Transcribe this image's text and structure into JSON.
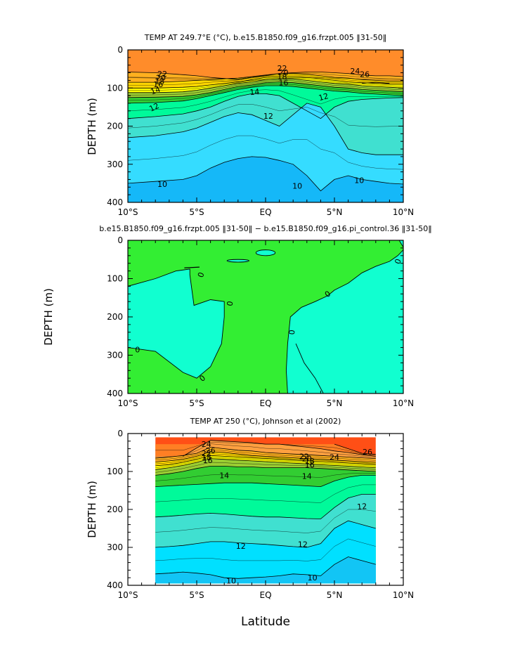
{
  "xlabel": "Latitude",
  "x_ticks": [
    "10°S",
    "5°S",
    "EQ",
    "5°N",
    "10°N"
  ],
  "y_ticks": [
    "0",
    "100",
    "200",
    "300",
    "400"
  ],
  "colors": {
    "top_panel": [
      "#0f1fe0",
      "#1f55f0",
      "#1e90ff",
      "#15b8f8",
      "#35dcff",
      "#40e0d0",
      "#00fa9a",
      "#32cd32",
      "#9acd32",
      "#ffff00",
      "#ffd700",
      "#ffb01f",
      "#ffa040",
      "#ff8c2a"
    ],
    "bottom_panel": [
      "#1f55f0",
      "#1e90ff",
      "#1aa8f8",
      "#12c5f5",
      "#00e0ff",
      "#40e0d0",
      "#00fa9a",
      "#32cd32",
      "#9acd32",
      "#ffff00",
      "#ffd700",
      "#ffb01f",
      "#ffa040",
      "#ff7f24",
      "#ff4f16"
    ],
    "diff_positive": "#33ee33",
    "diff_negative": "#11ffd0"
  },
  "chart_data": [
    {
      "type": "heatmap",
      "title": "TEMP AT 249.7°E (°C), b.e15.B1850.f09_g16.frzpt.005 ‖31-50‖",
      "ylabel": "DEPTH (m)",
      "xlim": [
        -10,
        10
      ],
      "ylim": [
        400,
        0
      ],
      "levels": [
        10,
        11,
        12,
        13,
        14,
        15,
        16,
        17,
        18,
        19,
        20,
        21,
        22,
        23,
        24,
        25,
        26
      ],
      "isotherm_depths": {
        "x": [
          -10,
          -8,
          -6,
          -5,
          -4,
          -3,
          -2,
          -1,
          0,
          1,
          2,
          3,
          4,
          5,
          6,
          7,
          8,
          9,
          10
        ],
        "26": [
          null,
          null,
          null,
          null,
          null,
          null,
          null,
          null,
          null,
          null,
          null,
          null,
          null,
          null,
          null,
          88,
          85,
          88,
          null
        ],
        "24": [
          58,
          60,
          65,
          68,
          72,
          75,
          78,
          72,
          68,
          62,
          60,
          58,
          58,
          60,
          62,
          66,
          68,
          68,
          70
        ],
        "22": [
          85,
          85,
          82,
          80,
          78,
          76,
          74,
          70,
          66,
          62,
          62,
          64,
          68,
          72,
          74,
          78,
          80,
          82,
          82
        ],
        "20": [
          100,
          100,
          98,
          96,
          92,
          88,
          84,
          78,
          72,
          70,
          70,
          72,
          76,
          80,
          84,
          86,
          88,
          90,
          90
        ],
        "18": [
          112,
          112,
          110,
          106,
          100,
          94,
          88,
          84,
          78,
          76,
          76,
          80,
          84,
          88,
          90,
          94,
          96,
          98,
          100
        ],
        "16": [
          125,
          124,
          122,
          118,
          112,
          104,
          96,
          92,
          86,
          84,
          86,
          90,
          94,
          98,
          100,
          104,
          106,
          108,
          110
        ],
        "14": [
          140,
          138,
          134,
          128,
          120,
          112,
          104,
          98,
          94,
          94,
          96,
          100,
          104,
          108,
          110,
          114,
          116,
          118,
          120
        ],
        "12": [
          180,
          175,
          168,
          160,
          150,
          135,
          122,
          115,
          115,
          120,
          140,
          160,
          180,
          150,
          135,
          130,
          128,
          126,
          125
        ],
        "11": [
          230,
          225,
          215,
          205,
          190,
          175,
          165,
          170,
          185,
          200,
          170,
          140,
          150,
          200,
          260,
          270,
          275,
          275,
          275
        ],
        "10": [
          350,
          345,
          340,
          330,
          310,
          295,
          285,
          280,
          282,
          290,
          300,
          330,
          370,
          340,
          330,
          340,
          345,
          350,
          352
        ]
      },
      "labels": [
        "22",
        "20",
        "18",
        "16",
        "14",
        "12",
        "12",
        "14",
        "16",
        "18",
        "20",
        "22",
        "24",
        "26",
        "12",
        "10",
        "10",
        "10"
      ]
    },
    {
      "type": "heatmap",
      "title": "b.e15.B1850.f09_g16.frzpt.005 ‖31-50‖ − b.e15.B1850.f09_g16.pi_control.36 ‖31-50‖",
      "ylabel": "DEPTH (m)",
      "xlim": [
        -10,
        10
      ],
      "ylim": [
        400,
        0
      ],
      "levels": [
        0
      ],
      "zero_contour": {
        "western_region": {
          "lat": [
            -10,
            -8,
            -6.5,
            -5.5,
            -5.5,
            -5.2,
            -4,
            -3,
            -3,
            -3.2,
            -4,
            -5,
            -6,
            -8,
            -10
          ],
          "depth": [
            120,
            100,
            80,
            75,
            90,
            170,
            155,
            160,
            200,
            270,
            330,
            360,
            345,
            290,
            280
          ]
        },
        "eastern_region": {
          "lat": [
            1.5,
            1.5,
            1.8,
            2.5,
            3.5,
            4.5,
            5,
            6,
            7,
            8,
            9,
            9.5,
            10,
            10,
            10,
            7,
            5,
            4.2,
            3,
            2,
            1.5
          ],
          "depth": [
            380,
            330,
            260,
            200,
            170,
            150,
            130,
            115,
            80,
            70,
            55,
            40,
            30,
            0,
            400,
            400,
            400,
            400,
            350,
            300,
            380
          ]
        },
        "small_patches": [
          {
            "lat": [
              -0.7,
              0.7
            ],
            "depth": [
              25,
              40
            ]
          },
          {
            "lat": [
              -2.8,
              -1.2
            ],
            "depth": [
              50,
              57
            ]
          }
        ]
      },
      "labels": [
        "0",
        "0",
        "0",
        "0",
        "0",
        "0",
        "0"
      ]
    },
    {
      "type": "heatmap",
      "title": "TEMP AT 250 (°C), Johnson et al (2002)",
      "ylabel": "DEPTH (m)",
      "xlim": [
        -10,
        10
      ],
      "ylim": [
        400,
        0
      ],
      "data_xrange": [
        -8,
        8
      ],
      "data_yrange": [
        10,
        395
      ],
      "levels": [
        10,
        11,
        12,
        13,
        14,
        15,
        16,
        17,
        18,
        19,
        20,
        21,
        22,
        23,
        24,
        25,
        26
      ],
      "isotherm_depths": {
        "x": [
          -8,
          -7,
          -6,
          -5,
          -4,
          -3,
          -2,
          -1,
          0,
          1,
          2,
          3,
          4,
          5,
          6,
          7,
          8
        ],
        "26": [
          null,
          null,
          null,
          null,
          null,
          null,
          null,
          null,
          null,
          null,
          null,
          null,
          null,
          28,
          40,
          52,
          55
        ],
        "24": [
          null,
          null,
          60,
          38,
          18,
          20,
          22,
          24,
          28,
          28,
          32,
          36,
          40,
          46,
          50,
          56,
          60
        ],
        "22": [
          65,
          62,
          58,
          52,
          36,
          40,
          44,
          46,
          50,
          52,
          54,
          56,
          58,
          60,
          62,
          64,
          66
        ],
        "20": [
          75,
          72,
          68,
          60,
          48,
          50,
          54,
          58,
          60,
          62,
          64,
          66,
          68,
          70,
          72,
          74,
          76
        ],
        "18": [
          85,
          82,
          76,
          68,
          58,
          60,
          62,
          64,
          66,
          68,
          70,
          72,
          74,
          76,
          78,
          80,
          82
        ],
        "16": [
          95,
          90,
          84,
          76,
          66,
          68,
          70,
          72,
          74,
          76,
          78,
          80,
          82,
          84,
          86,
          88,
          90
        ],
        "14": [
          110,
          106,
          100,
          92,
          86,
          86,
          88,
          88,
          90,
          90,
          90,
          90,
          92,
          94,
          96,
          98,
          100
        ],
        "13": [
          140,
          138,
          136,
          134,
          132,
          130,
          130,
          130,
          132,
          134,
          136,
          138,
          140,
          125,
          115,
          110,
          110
        ],
        "12": [
          220,
          218,
          215,
          212,
          210,
          212,
          215,
          218,
          220,
          220,
          222,
          224,
          225,
          195,
          170,
          160,
          160
        ],
        "11": [
          300,
          298,
          295,
          290,
          285,
          285,
          288,
          290,
          292,
          295,
          298,
          300,
          290,
          250,
          230,
          240,
          250
        ],
        "10": [
          370,
          368,
          365,
          368,
          372,
          380,
          382,
          380,
          378,
          375,
          370,
          372,
          375,
          345,
          325,
          335,
          345
        ]
      },
      "labels": [
        "24",
        "26",
        "22",
        "18",
        "16",
        "14",
        "24",
        "22",
        "20",
        "18",
        "16",
        "26",
        "14",
        "12",
        "12",
        "12",
        "10",
        "10"
      ]
    }
  ]
}
